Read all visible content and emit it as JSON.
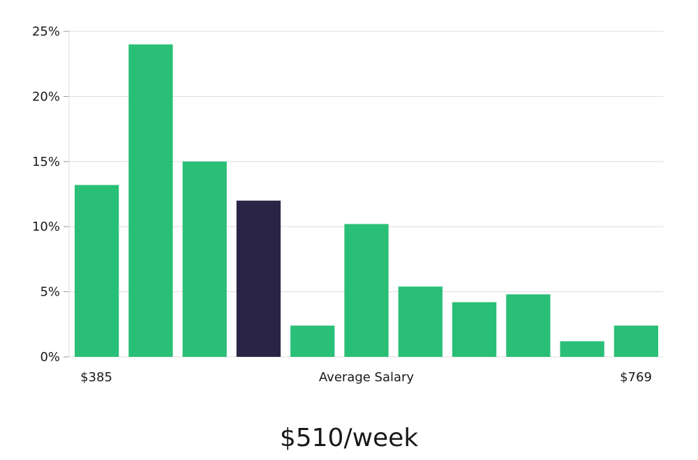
{
  "chart_data": {
    "type": "bar",
    "values": [
      13.2,
      24.0,
      15.0,
      12.0,
      2.4,
      10.2,
      5.4,
      4.2,
      4.8,
      1.2,
      2.4
    ],
    "highlight_index": 3,
    "y_ticks": [
      0,
      5,
      10,
      15,
      20,
      25
    ],
    "y_tick_labels": [
      "0%",
      "5%",
      "10%",
      "15%",
      "20%",
      "25%"
    ],
    "ylim": [
      0,
      25
    ],
    "grid": true,
    "x_min_label": "$385",
    "x_max_label": "$769",
    "xlabel": "Average Salary",
    "colors": {
      "bar": "#2abf77",
      "highlight": "#2a2546",
      "grid": "#dddddd"
    }
  },
  "summary": {
    "salary_text": "$510/week"
  }
}
